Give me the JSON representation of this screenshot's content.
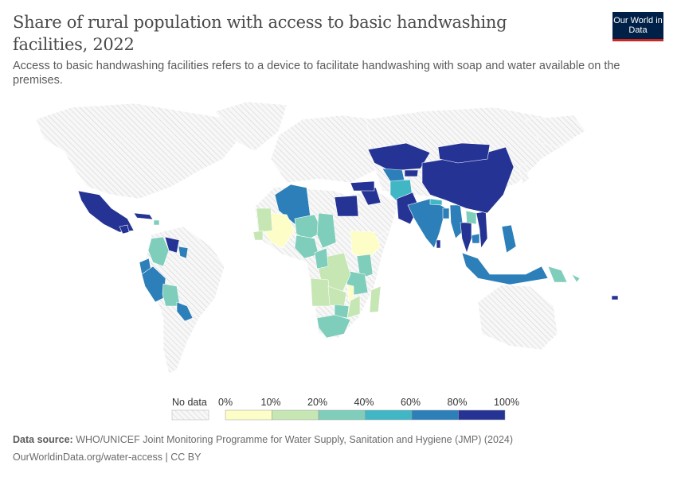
{
  "header": {
    "title": "Share of rural population with access to basic handwashing facilities, 2022",
    "subtitle": "Access to basic handwashing facilities refers to a device to facilitate handwashing with soap and water available on the premises.",
    "logo": "Our World in Data"
  },
  "footer": {
    "source_label": "Data source:",
    "source": "WHO/UNICEF Joint Monitoring Programme for Water Supply, Sanitation and Hygiene (JMP) (2024)",
    "url": "OurWorldinData.org/water-access | CC BY"
  },
  "chart_data": {
    "type": "choropleth",
    "title": "Share of rural population with access to basic handwashing facilities, 2022",
    "legend": {
      "no_data": "No data",
      "ticks": [
        "0%",
        "10%",
        "20%",
        "40%",
        "60%",
        "80%",
        "100%"
      ],
      "bins": [
        [
          0,
          10
        ],
        [
          10,
          20
        ],
        [
          20,
          40
        ],
        [
          40,
          60
        ],
        [
          60,
          80
        ],
        [
          80,
          100
        ]
      ],
      "colors": [
        "#fdfdc8",
        "#c6e6b4",
        "#7fcdbb",
        "#41b6c4",
        "#2c7fb8",
        "#253494"
      ],
      "no_data_color": "#e6e6e6"
    },
    "countries": [
      {
        "name": "Mexico",
        "bin": 5
      },
      {
        "name": "Guatemala",
        "bin": 5
      },
      {
        "name": "Cuba",
        "bin": 5
      },
      {
        "name": "Haiti",
        "bin": 2
      },
      {
        "name": "Colombia",
        "bin": 2
      },
      {
        "name": "Venezuela",
        "bin": 5
      },
      {
        "name": "Guyana",
        "bin": 4
      },
      {
        "name": "Ecuador",
        "bin": 4
      },
      {
        "name": "Peru",
        "bin": 4
      },
      {
        "name": "Bolivia",
        "bin": 2
      },
      {
        "name": "Paraguay",
        "bin": 4
      },
      {
        "name": "Algeria",
        "bin": 4
      },
      {
        "name": "Egypt",
        "bin": 5
      },
      {
        "name": "Mali",
        "bin": 0
      },
      {
        "name": "Mauritania",
        "bin": 1
      },
      {
        "name": "Niger",
        "bin": 2
      },
      {
        "name": "Chad",
        "bin": 2
      },
      {
        "name": "Nigeria",
        "bin": 2
      },
      {
        "name": "Senegal",
        "bin": 1
      },
      {
        "name": "Ethiopia",
        "bin": 0
      },
      {
        "name": "Kenya",
        "bin": 2
      },
      {
        "name": "Tanzania",
        "bin": 2
      },
      {
        "name": "DR Congo",
        "bin": 1
      },
      {
        "name": "Angola",
        "bin": 1
      },
      {
        "name": "Zambia",
        "bin": 1
      },
      {
        "name": "Malawi",
        "bin": 0
      },
      {
        "name": "Mozambique",
        "bin": 1
      },
      {
        "name": "Zimbabwe",
        "bin": 2
      },
      {
        "name": "South Africa",
        "bin": 2
      },
      {
        "name": "Madagascar",
        "bin": 1
      },
      {
        "name": "Cameroon",
        "bin": 2
      },
      {
        "name": "Iraq",
        "bin": 5
      },
      {
        "name": "Turkey",
        "bin": 5
      },
      {
        "name": "Kazakhstan",
        "bin": 5
      },
      {
        "name": "Uzbekistan",
        "bin": 4
      },
      {
        "name": "Afghanistan",
        "bin": 3
      },
      {
        "name": "Pakistan",
        "bin": 5
      },
      {
        "name": "India",
        "bin": 4
      },
      {
        "name": "Nepal",
        "bin": 3
      },
      {
        "name": "Bangladesh",
        "bin": 4
      },
      {
        "name": "Myanmar",
        "bin": 4
      },
      {
        "name": "Thailand",
        "bin": 5
      },
      {
        "name": "Laos",
        "bin": 2
      },
      {
        "name": "Vietnam",
        "bin": 5
      },
      {
        "name": "Cambodia",
        "bin": 4
      },
      {
        "name": "China",
        "bin": 5
      },
      {
        "name": "Mongolia",
        "bin": 5
      },
      {
        "name": "Kyrgyzstan",
        "bin": 5
      },
      {
        "name": "Philippines",
        "bin": 4
      },
      {
        "name": "Indonesia",
        "bin": 4
      },
      {
        "name": "Papua New Guinea",
        "bin": 2
      },
      {
        "name": "Solomon Islands",
        "bin": 2
      },
      {
        "name": "Sri Lanka",
        "bin": 5
      },
      {
        "name": "Fiji",
        "bin": 5
      }
    ]
  }
}
